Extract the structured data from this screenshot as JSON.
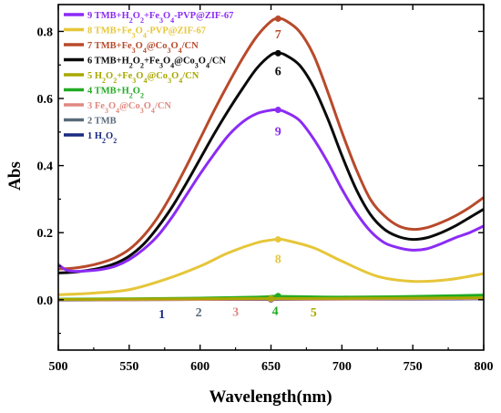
{
  "chart_data": {
    "type": "line",
    "xlabel": "Wavelength(nm)",
    "ylabel": "Abs",
    "xlim": [
      500,
      800
    ],
    "ylim": [
      -0.15,
      0.88
    ],
    "xticks": [
      500,
      550,
      600,
      650,
      700,
      750,
      800
    ],
    "yticks": [
      0.0,
      0.2,
      0.4,
      0.6,
      0.8
    ],
    "ytick_labels": [
      "0.0",
      "0.2",
      "0.4",
      "0.6",
      "0.8"
    ],
    "grid": false,
    "legend_position": "top-left",
    "series": [
      {
        "name": "9 TMB+H2O2+Fe3O4-PVP@ZIF-67",
        "tag": "9",
        "color": "#8B2BF5",
        "x": [
          500,
          505,
          510,
          520,
          530,
          540,
          550,
          560,
          570,
          580,
          590,
          600,
          610,
          620,
          630,
          640,
          650,
          655,
          660,
          670,
          680,
          690,
          700,
          710,
          720,
          730,
          740,
          750,
          760,
          770,
          780,
          790,
          800
        ],
        "y": [
          0.105,
          0.09,
          0.085,
          0.086,
          0.09,
          0.1,
          0.12,
          0.15,
          0.19,
          0.245,
          0.31,
          0.375,
          0.435,
          0.49,
          0.53,
          0.555,
          0.565,
          0.566,
          0.56,
          0.535,
          0.48,
          0.41,
          0.33,
          0.26,
          0.205,
          0.17,
          0.155,
          0.148,
          0.152,
          0.167,
          0.185,
          0.2,
          0.22
        ],
        "label_value": [
          655,
          0.49
        ]
      },
      {
        "name": "8 TMB+Fe3O4-PVP@ZIF-67",
        "tag": "8",
        "color": "#E6C63A",
        "x": [
          500,
          525,
          550,
          575,
          600,
          620,
          640,
          650,
          655,
          660,
          680,
          700,
          725,
          750,
          775,
          800
        ],
        "y": [
          0.015,
          0.02,
          0.03,
          0.06,
          0.1,
          0.14,
          0.17,
          0.178,
          0.18,
          0.178,
          0.155,
          0.115,
          0.07,
          0.055,
          0.06,
          0.078
        ],
        "label_value": [
          655,
          0.11
        ]
      },
      {
        "name": "7 TMB+Fe3O4@Co3O4/CN",
        "tag": "7",
        "color": "#B84A2B",
        "x": [
          500,
          510,
          520,
          530,
          540,
          550,
          560,
          570,
          580,
          590,
          600,
          610,
          620,
          630,
          640,
          650,
          655,
          660,
          670,
          680,
          690,
          700,
          710,
          720,
          730,
          740,
          750,
          760,
          770,
          780,
          790,
          800
        ],
        "y": [
          0.092,
          0.094,
          0.1,
          0.11,
          0.125,
          0.15,
          0.19,
          0.245,
          0.315,
          0.395,
          0.48,
          0.565,
          0.645,
          0.72,
          0.785,
          0.83,
          0.838,
          0.833,
          0.8,
          0.73,
          0.62,
          0.5,
          0.39,
          0.3,
          0.25,
          0.22,
          0.21,
          0.215,
          0.23,
          0.25,
          0.275,
          0.305
        ],
        "label_value": [
          655,
          0.78
        ]
      },
      {
        "name": "6 TMB+H2O2+Fe3O4@Co3O4/CN",
        "tag": "6",
        "color": "#0A0A0A",
        "x": [
          500,
          510,
          520,
          530,
          540,
          550,
          560,
          570,
          580,
          590,
          600,
          610,
          620,
          630,
          640,
          650,
          655,
          660,
          670,
          680,
          690,
          700,
          710,
          720,
          730,
          740,
          750,
          760,
          770,
          780,
          790,
          800
        ],
        "y": [
          0.08,
          0.082,
          0.087,
          0.095,
          0.108,
          0.13,
          0.165,
          0.215,
          0.275,
          0.345,
          0.42,
          0.495,
          0.565,
          0.63,
          0.69,
          0.73,
          0.735,
          0.73,
          0.7,
          0.635,
          0.54,
          0.43,
          0.33,
          0.255,
          0.21,
          0.188,
          0.18,
          0.185,
          0.2,
          0.22,
          0.245,
          0.27
        ],
        "label_value": [
          655,
          0.67
        ]
      },
      {
        "name": "5 H2O2+Fe3O4@Co3O4/CN",
        "tag": "5",
        "color": "#A8A800",
        "x": [
          500,
          550,
          600,
          650,
          700,
          750,
          800
        ],
        "y": [
          0.001,
          0.002,
          0.003,
          0.004,
          0.004,
          0.005,
          0.006
        ],
        "label_value": [
          680,
          -0.05
        ]
      },
      {
        "name": "4 TMB+H2O2",
        "tag": "4",
        "color": "#22AA22",
        "x": [
          500,
          550,
          600,
          640,
          650,
          655,
          660,
          700,
          750,
          800
        ],
        "y": [
          0.002,
          0.003,
          0.005,
          0.008,
          0.01,
          0.011,
          0.01,
          0.008,
          0.01,
          0.014
        ],
        "label_value": [
          653,
          -0.045
        ]
      },
      {
        "name": "3 Fe3O4@Co3O4/CN",
        "tag": "3",
        "color": "#E08880",
        "x": [
          500,
          550,
          600,
          650,
          700,
          750,
          800
        ],
        "y": [
          0.0,
          0.0,
          0.001,
          0.002,
          0.002,
          0.003,
          0.004
        ],
        "label_value": [
          625,
          -0.048
        ]
      },
      {
        "name": "2 TMB",
        "tag": "2",
        "color": "#5A6A7A",
        "x": [
          500,
          550,
          600,
          650,
          700,
          750,
          800
        ],
        "y": [
          0.0,
          0.001,
          0.002,
          0.003,
          0.003,
          0.004,
          0.005
        ],
        "label_value": [
          599,
          -0.05
        ]
      },
      {
        "name": "1 H2O2",
        "tag": "1",
        "color": "#1A2A80",
        "x": [
          500,
          550,
          600,
          650,
          700,
          750,
          800
        ],
        "y": [
          -0.001,
          0.0,
          0.001,
          0.001,
          0.002,
          0.002,
          0.003
        ],
        "label_value": [
          573,
          -0.055
        ]
      }
    ],
    "legend": [
      {
        "prefix": "9 TMB+H",
        "sub1": "2",
        "mid": "O",
        "sub2": "2",
        "suffix": "+Fe",
        "sub3": "3",
        "mid2": "O",
        "sub4": "4",
        "tail": "-PVP@ZIF-67"
      },
      {
        "prefix": "8 TMB+Fe",
        "sub1": "3",
        "mid": "O",
        "sub2": "4",
        "suffix": "-PVP@ZIF-67"
      },
      {
        "prefix": "7 TMB+Fe",
        "sub1": "3",
        "mid": "O",
        "sub2": "4",
        "suffix": "@Co",
        "sub3": "3",
        "mid2": "O",
        "sub4": "4",
        "tail": "/CN"
      },
      {
        "prefix": "6 TMB+H",
        "sub1": "2",
        "mid": "O",
        "sub2": "2",
        "suffix": "+Fe",
        "sub3": "3",
        "mid2": "O",
        "sub4": "4",
        "tail": "@Co",
        "sub5": "3",
        "mid3": "O",
        "sub6": "4",
        "tail2": "/CN"
      },
      {
        "prefix": "5 H",
        "sub1": "2",
        "mid": "O",
        "sub2": "2",
        "suffix": "+Fe",
        "sub3": "3",
        "mid2": "O",
        "sub4": "4",
        "tail": "@Co",
        "sub5": "3",
        "mid3": "O",
        "sub6": "4",
        "tail2": "/CN"
      },
      {
        "prefix": "4 TMB+H",
        "sub1": "2",
        "mid": "O",
        "sub2": "2"
      },
      {
        "prefix": "3 Fe",
        "sub1": "3",
        "mid": "O",
        "sub2": "4",
        "suffix": "@Co",
        "sub3": "3",
        "mid2": "O",
        "sub4": "4",
        "tail": "/CN"
      },
      {
        "prefix": "2 TMB"
      },
      {
        "prefix": "1 H",
        "sub1": "2",
        "mid": "O",
        "sub2": "2"
      }
    ]
  }
}
